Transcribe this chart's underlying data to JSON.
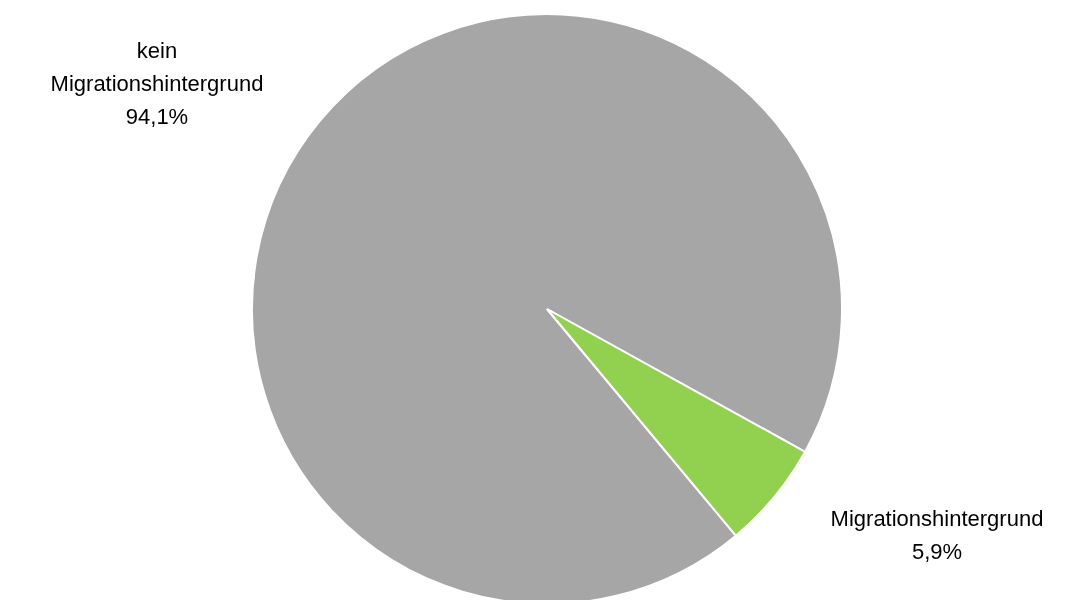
{
  "chart_data": {
    "type": "pie",
    "categories": [
      "kein Migrationshintergrund",
      "Migrationshintergrund"
    ],
    "values": [
      94.1,
      5.9
    ],
    "colors": [
      "#a6a6a6",
      "#92d050"
    ],
    "value_labels": [
      "94,1%",
      "5,9%"
    ]
  }
}
